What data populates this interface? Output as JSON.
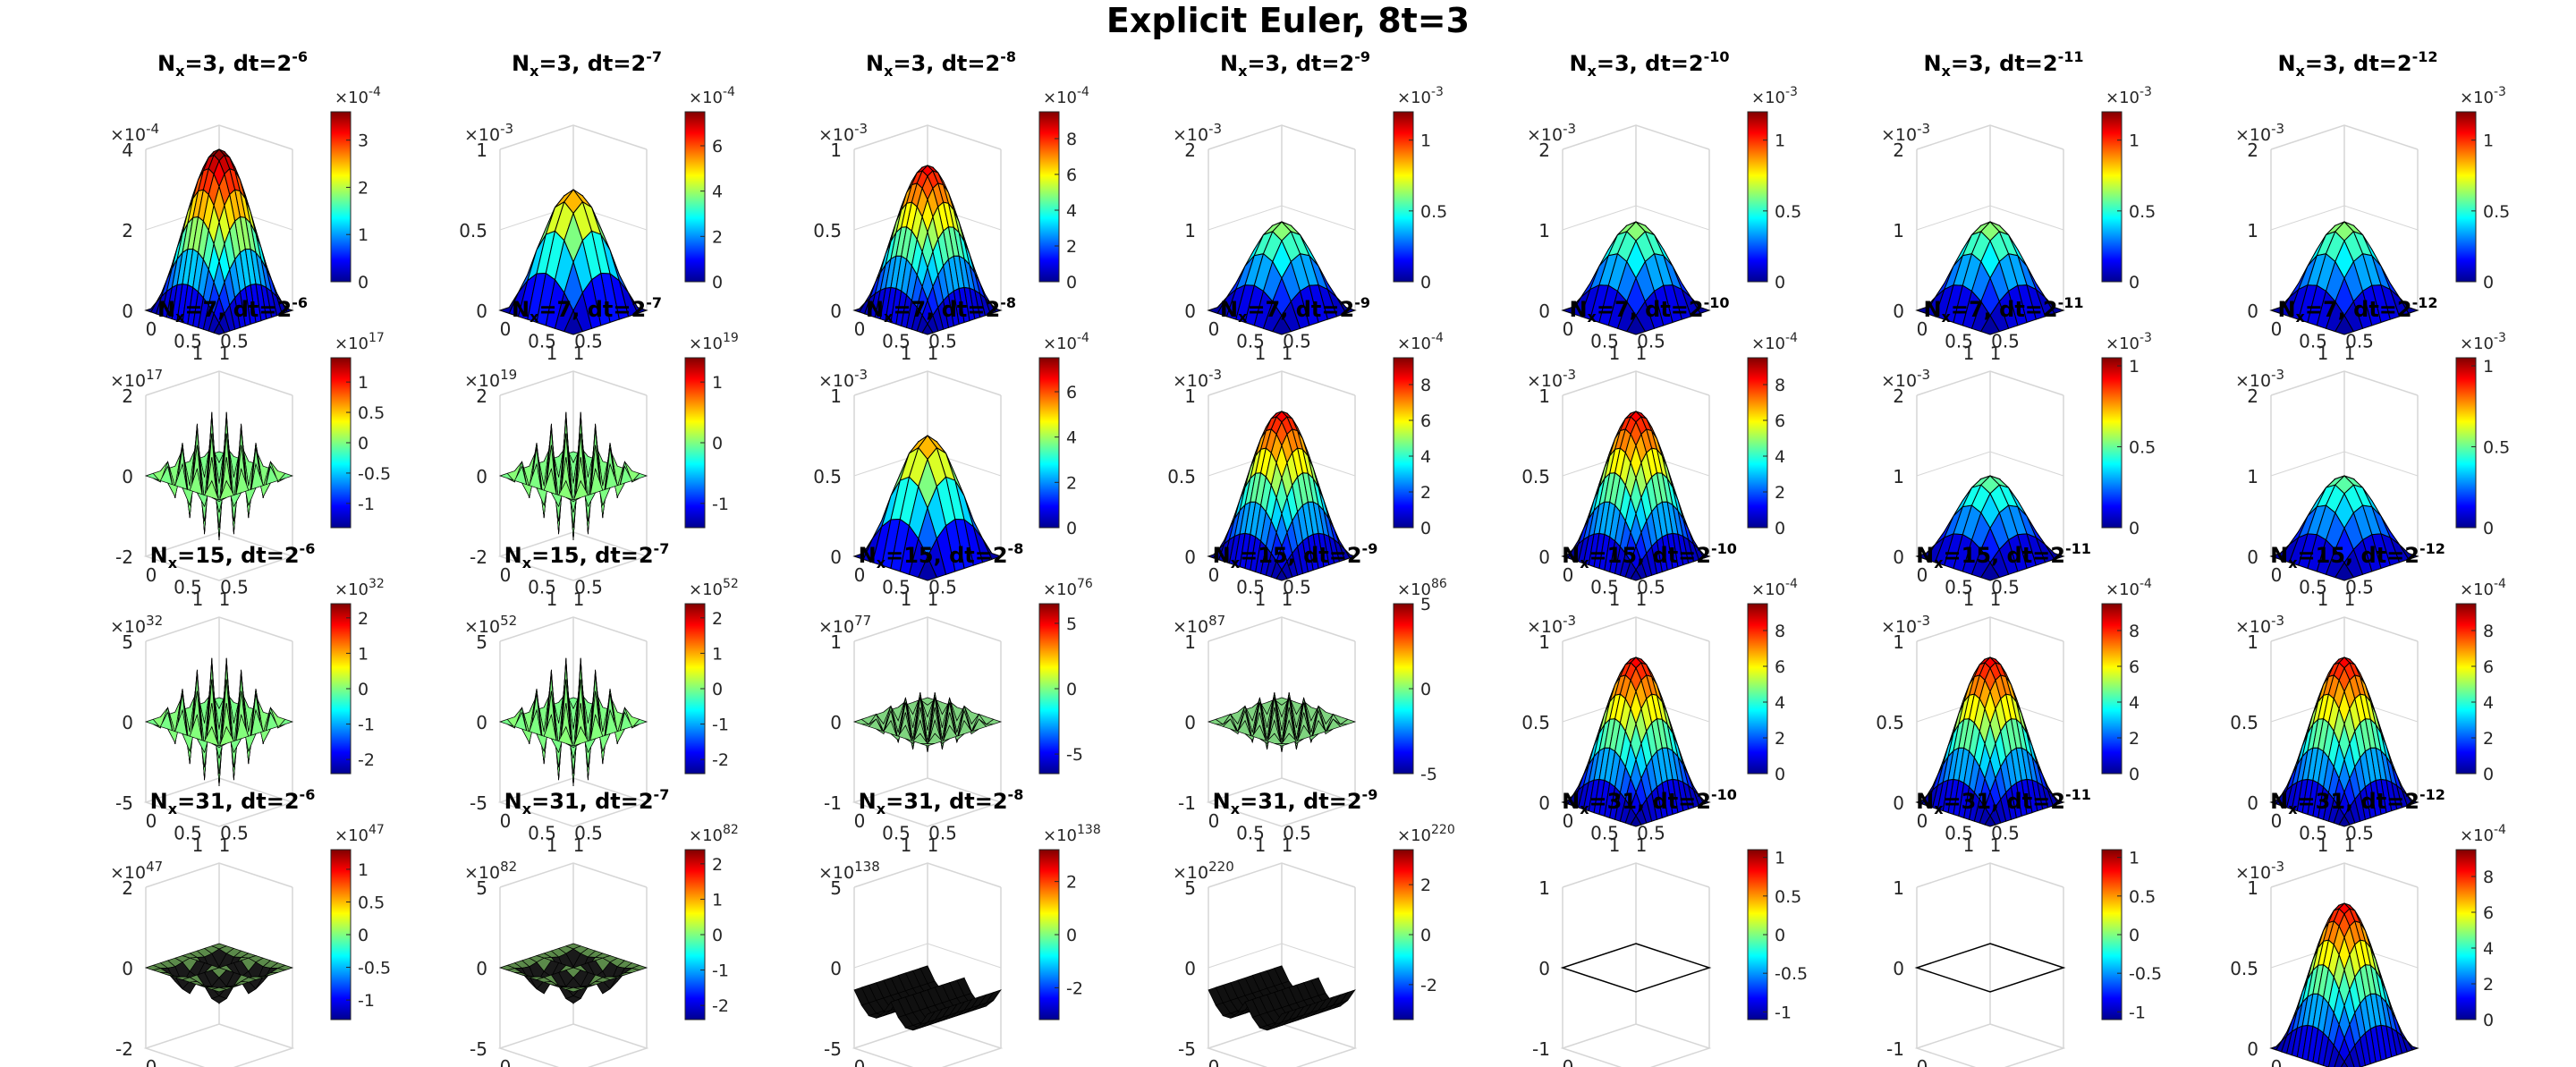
{
  "title": "Explicit Euler, 8t=3",
  "colormap": [
    "#00008f",
    "#0000ff",
    "#0080ff",
    "#00ffff",
    "#80ff80",
    "#ffff00",
    "#ff8000",
    "#ff0000",
    "#800000"
  ],
  "chart_data": {
    "type": "surface-grid",
    "description_rows": "N_x values",
    "rows": [
      3,
      7,
      15,
      31
    ],
    "cols": [
      "-6",
      "-7",
      "-8",
      "-9",
      "-10",
      "-11",
      "-12"
    ],
    "panels": [
      [
        {
          "title_n": "3",
          "title_e": "-6",
          "zticks": [
            "0",
            "2",
            "4"
          ],
          "zmax": 4,
          "zexp": "-4",
          "xticks": [
            "0",
            "0.5",
            "1"
          ],
          "yticks": [
            "0",
            "0.5",
            "1"
          ],
          "cb_exp": "-4",
          "cb_ticks": [
            "0",
            "1",
            "2",
            "3"
          ],
          "cb_max": 3.6,
          "kind": "smooth",
          "peak": 1.0
        },
        {
          "title_n": "3",
          "title_e": "-7",
          "zticks": [
            "0",
            "0.5",
            "1"
          ],
          "zmax": 1,
          "zexp": "-3",
          "xticks": [
            "0",
            "0.5",
            "1"
          ],
          "yticks": [
            "0",
            "0.5",
            "1"
          ],
          "cb_exp": "-4",
          "cb_ticks": [
            "0",
            "2",
            "4",
            "6"
          ],
          "cb_max": 7.5,
          "kind": "smooth",
          "peak": 0.75
        },
        {
          "title_n": "3",
          "title_e": "-8",
          "zticks": [
            "0",
            "0.5",
            "1"
          ],
          "zmax": 1,
          "zexp": "-3",
          "xticks": [
            "0",
            "0.5",
            "1"
          ],
          "yticks": [
            "0",
            "0.5",
            "1"
          ],
          "cb_exp": "-4",
          "cb_ticks": [
            "0",
            "2",
            "4",
            "6",
            "8"
          ],
          "cb_max": 9.5,
          "kind": "smooth",
          "peak": 0.9
        },
        {
          "title_n": "3",
          "title_e": "-9",
          "zticks": [
            "0",
            "1",
            "2"
          ],
          "zmax": 2,
          "zexp": "-3",
          "xticks": [
            "0",
            "0.5",
            "1"
          ],
          "yticks": [
            "0",
            "0.5",
            "1"
          ],
          "cb_exp": "-3",
          "cb_ticks": [
            "0",
            "0.5",
            "1"
          ],
          "cb_max": 1.2,
          "kind": "smooth",
          "peak": 0.55
        },
        {
          "title_n": "3",
          "title_e": "-10",
          "zticks": [
            "0",
            "1",
            "2"
          ],
          "zmax": 2,
          "zexp": "-3",
          "xticks": [
            "0",
            "0.5",
            "1"
          ],
          "yticks": [
            "0",
            "0.5",
            "1"
          ],
          "cb_exp": "-3",
          "cb_ticks": [
            "0",
            "0.5",
            "1"
          ],
          "cb_max": 1.2,
          "kind": "smooth",
          "peak": 0.55
        },
        {
          "title_n": "3",
          "title_e": "-11",
          "zticks": [
            "0",
            "1",
            "2"
          ],
          "zmax": 2,
          "zexp": "-3",
          "xticks": [
            "0",
            "0.5",
            "1"
          ],
          "yticks": [
            "0",
            "0.5",
            "1"
          ],
          "cb_exp": "-3",
          "cb_ticks": [
            "0",
            "0.5",
            "1"
          ],
          "cb_max": 1.2,
          "kind": "smooth",
          "peak": 0.55
        },
        {
          "title_n": "3",
          "title_e": "-12",
          "zticks": [
            "0",
            "1",
            "2"
          ],
          "zmax": 2,
          "zexp": "-3",
          "xticks": [
            "0",
            "0.5",
            "1"
          ],
          "yticks": [
            "0",
            "0.5",
            "1"
          ],
          "cb_exp": "-3",
          "cb_ticks": [
            "0",
            "0.5",
            "1"
          ],
          "cb_max": 1.2,
          "kind": "smooth",
          "peak": 0.55
        }
      ],
      [
        {
          "title_n": "7",
          "title_e": "-6",
          "zticks": [
            "-2",
            "0",
            "2"
          ],
          "zmax": 2,
          "zexp": "17",
          "xticks": [
            "0",
            "0.5",
            "1"
          ],
          "yticks": [
            "0",
            "0.5",
            "1"
          ],
          "cb_exp": "17",
          "cb_ticks": [
            "-1",
            "-0.5",
            "0",
            "0.5",
            "1"
          ],
          "cb_max": 1.4,
          "kind": "spiky",
          "peak": 0.5
        },
        {
          "title_n": "7",
          "title_e": "-7",
          "zticks": [
            "-2",
            "0",
            "2"
          ],
          "zmax": 2,
          "zexp": "19",
          "xticks": [
            "0",
            "0.5",
            "1"
          ],
          "yticks": [
            "0",
            "0.5",
            "1"
          ],
          "cb_exp": "19",
          "cb_ticks": [
            "-1",
            "0",
            "1"
          ],
          "cb_max": 1.4,
          "kind": "spiky",
          "peak": 0.5
        },
        {
          "title_n": "7",
          "title_e": "-8",
          "zticks": [
            "0",
            "0.5",
            "1"
          ],
          "zmax": 1,
          "zexp": "-3",
          "xticks": [
            "0",
            "0.5",
            "1"
          ],
          "yticks": [
            "0",
            "0.5",
            "1"
          ],
          "cb_exp": "-4",
          "cb_ticks": [
            "0",
            "2",
            "4",
            "6"
          ],
          "cb_max": 7.5,
          "kind": "smooth",
          "peak": 0.75
        },
        {
          "title_n": "7",
          "title_e": "-9",
          "zticks": [
            "0",
            "0.5",
            "1"
          ],
          "zmax": 1,
          "zexp": "-3",
          "xticks": [
            "0",
            "0.5",
            "1"
          ],
          "yticks": [
            "0",
            "0.5",
            "1"
          ],
          "cb_exp": "-4",
          "cb_ticks": [
            "0",
            "2",
            "4",
            "6",
            "8"
          ],
          "cb_max": 9.5,
          "kind": "smooth",
          "peak": 0.9
        },
        {
          "title_n": "7",
          "title_e": "-10",
          "zticks": [
            "0",
            "0.5",
            "1"
          ],
          "zmax": 1,
          "zexp": "-3",
          "xticks": [
            "0",
            "0.5",
            "1"
          ],
          "yticks": [
            "0",
            "0.5",
            "1"
          ],
          "cb_exp": "-4",
          "cb_ticks": [
            "0",
            "2",
            "4",
            "6",
            "8"
          ],
          "cb_max": 9.5,
          "kind": "smooth",
          "peak": 0.9
        },
        {
          "title_n": "7",
          "title_e": "-11",
          "zticks": [
            "0",
            "1",
            "2"
          ],
          "zmax": 2,
          "zexp": "-3",
          "xticks": [
            "0",
            "0.5",
            "1"
          ],
          "yticks": [
            "0",
            "0.5",
            "1"
          ],
          "cb_exp": "-3",
          "cb_ticks": [
            "0",
            "0.5",
            "1"
          ],
          "cb_max": 1.05,
          "kind": "smooth",
          "peak": 0.5
        },
        {
          "title_n": "7",
          "title_e": "-12",
          "zticks": [
            "0",
            "1",
            "2"
          ],
          "zmax": 2,
          "zexp": "-3",
          "xticks": [
            "0",
            "0.5",
            "1"
          ],
          "yticks": [
            "0",
            "0.5",
            "1"
          ],
          "cb_exp": "-3",
          "cb_ticks": [
            "0",
            "0.5",
            "1"
          ],
          "cb_max": 1.05,
          "kind": "smooth",
          "peak": 0.5
        }
      ],
      [
        {
          "title_n": "15",
          "title_e": "-6",
          "zticks": [
            "-5",
            "0",
            "5"
          ],
          "zmax": 5,
          "zexp": "32",
          "xticks": [
            "0",
            "0.5",
            "1"
          ],
          "yticks": [
            "0",
            "0.5",
            "1"
          ],
          "cb_exp": "32",
          "cb_ticks": [
            "-2",
            "-1",
            "0",
            "1",
            "2"
          ],
          "cb_max": 2.4,
          "kind": "spiky",
          "peak": 0.45
        },
        {
          "title_n": "15",
          "title_e": "-7",
          "zticks": [
            "-5",
            "0",
            "5"
          ],
          "zmax": 5,
          "zexp": "52",
          "xticks": [
            "0",
            "0.5",
            "1"
          ],
          "yticks": [
            "0",
            "0.5",
            "1"
          ],
          "cb_exp": "52",
          "cb_ticks": [
            "-2",
            "-1",
            "0",
            "1",
            "2"
          ],
          "cb_max": 2.4,
          "kind": "spiky",
          "peak": 0.45
        },
        {
          "title_n": "15",
          "title_e": "-8",
          "zticks": [
            "-1",
            "0",
            "1"
          ],
          "zmax": 1,
          "zexp": "77",
          "xticks": [
            "0",
            "0.5",
            "1"
          ],
          "yticks": [
            "0",
            "0.5",
            "1"
          ],
          "cb_exp": "76",
          "cb_ticks": [
            "-5",
            "0",
            "5"
          ],
          "cb_max": 6.5,
          "kind": "dark",
          "peak": 0.3
        },
        {
          "title_n": "15",
          "title_e": "-9",
          "zticks": [
            "-1",
            "0",
            "1"
          ],
          "zmax": 1,
          "zexp": "87",
          "xticks": [
            "0",
            "0.5",
            "1"
          ],
          "yticks": [
            "0",
            "0.5",
            "1"
          ],
          "cb_exp": "86",
          "cb_ticks": [
            "-5",
            "0",
            "5"
          ],
          "cb_max": 5,
          "kind": "dark",
          "peak": 0.3
        },
        {
          "title_n": "15",
          "title_e": "-10",
          "zticks": [
            "0",
            "0.5",
            "1"
          ],
          "zmax": 1,
          "zexp": "-3",
          "xticks": [
            "0",
            "0.5",
            "1"
          ],
          "yticks": [
            "0",
            "0.5",
            "1"
          ],
          "cb_exp": "-4",
          "cb_ticks": [
            "0",
            "2",
            "4",
            "6",
            "8"
          ],
          "cb_max": 9.5,
          "kind": "smooth",
          "peak": 0.9
        },
        {
          "title_n": "15",
          "title_e": "-11",
          "zticks": [
            "0",
            "0.5",
            "1"
          ],
          "zmax": 1,
          "zexp": "-3",
          "xticks": [
            "0",
            "0.5",
            "1"
          ],
          "yticks": [
            "0",
            "0.5",
            "1"
          ],
          "cb_exp": "-4",
          "cb_ticks": [
            "0",
            "2",
            "4",
            "6",
            "8"
          ],
          "cb_max": 9.5,
          "kind": "smooth",
          "peak": 0.9
        },
        {
          "title_n": "15",
          "title_e": "-12",
          "zticks": [
            "0",
            "0.5",
            "1"
          ],
          "zmax": 1,
          "zexp": "-3",
          "xticks": [
            "0",
            "0.5",
            "1"
          ],
          "yticks": [
            "0",
            "0.5",
            "1"
          ],
          "cb_exp": "-4",
          "cb_ticks": [
            "0",
            "2",
            "4",
            "6",
            "8"
          ],
          "cb_max": 9.5,
          "kind": "smooth",
          "peak": 0.9
        }
      ],
      [
        {
          "title_n": "31",
          "title_e": "-6",
          "zticks": [
            "-2",
            "0",
            "2"
          ],
          "zmax": 2,
          "zexp": "47",
          "xticks": [
            "0",
            "0.5",
            "1"
          ],
          "yticks": [
            "0",
            "0.5",
            "1"
          ],
          "cb_exp": "47",
          "cb_ticks": [
            "-1",
            "-0.5",
            "0",
            "0.5",
            "1"
          ],
          "cb_max": 1.3,
          "kind": "flatspike",
          "peak": 0.5
        },
        {
          "title_n": "31",
          "title_e": "-7",
          "zticks": [
            "-5",
            "0",
            "5"
          ],
          "zmax": 5,
          "zexp": "82",
          "xticks": [
            "0",
            "0.5",
            "1"
          ],
          "yticks": [
            "0",
            "0.5",
            "1"
          ],
          "cb_exp": "82",
          "cb_ticks": [
            "-2",
            "-1",
            "0",
            "1",
            "2"
          ],
          "cb_max": 2.4,
          "kind": "flatspike",
          "peak": 0.5
        },
        {
          "title_n": "31",
          "title_e": "-8",
          "zticks": [
            "-5",
            "0",
            "5"
          ],
          "zmax": 5,
          "zexp": "138",
          "xticks": [
            "0",
            "0.5",
            "1"
          ],
          "yticks": [
            "0",
            "0.5",
            "1"
          ],
          "cb_exp": "138",
          "cb_ticks": [
            "-2",
            "0",
            "2"
          ],
          "cb_max": 3.2,
          "kind": "blackspike",
          "peak": 0.5
        },
        {
          "title_n": "31",
          "title_e": "-9",
          "zticks": [
            "-5",
            "0",
            "5"
          ],
          "zmax": 5,
          "zexp": "220",
          "xticks": [
            "0",
            "0.5",
            "1"
          ],
          "yticks": [
            "0",
            "0.5",
            "1"
          ],
          "cb_exp": "220",
          "cb_ticks": [
            "-2",
            "0",
            "2"
          ],
          "cb_max": 3.4,
          "kind": "blackspike",
          "peak": 0.5
        },
        {
          "title_n": "31",
          "title_e": "-10",
          "zticks": [
            "-1",
            "0",
            "1"
          ],
          "zmax": 1,
          "zexp": "",
          "xticks": [
            "0",
            "0.5",
            "1"
          ],
          "yticks": [
            "0",
            "0.5",
            "1"
          ],
          "cb_exp": "",
          "cb_ticks": [
            "-1",
            "-0.5",
            "0",
            "0.5",
            "1"
          ],
          "cb_max": 1.1,
          "kind": "empty",
          "peak": 0
        },
        {
          "title_n": "31",
          "title_e": "-11",
          "zticks": [
            "-1",
            "0",
            "1"
          ],
          "zmax": 1,
          "zexp": "",
          "xticks": [
            "0",
            "0.5",
            "1"
          ],
          "yticks": [
            "0",
            "0.5",
            "1"
          ],
          "cb_exp": "",
          "cb_ticks": [
            "-1",
            "-0.5",
            "0",
            "0.5",
            "1"
          ],
          "cb_max": 1.1,
          "kind": "empty",
          "peak": 0
        },
        {
          "title_n": "31",
          "title_e": "-12",
          "zticks": [
            "0",
            "0.5",
            "1"
          ],
          "zmax": 1,
          "zexp": "-3",
          "xticks": [
            "0",
            "0.5",
            "1"
          ],
          "yticks": [
            "0",
            "0.5",
            "1"
          ],
          "cb_exp": "-4",
          "cb_ticks": [
            "0",
            "2",
            "4",
            "6",
            "8"
          ],
          "cb_max": 9.5,
          "kind": "smooth",
          "peak": 0.9
        }
      ]
    ]
  }
}
